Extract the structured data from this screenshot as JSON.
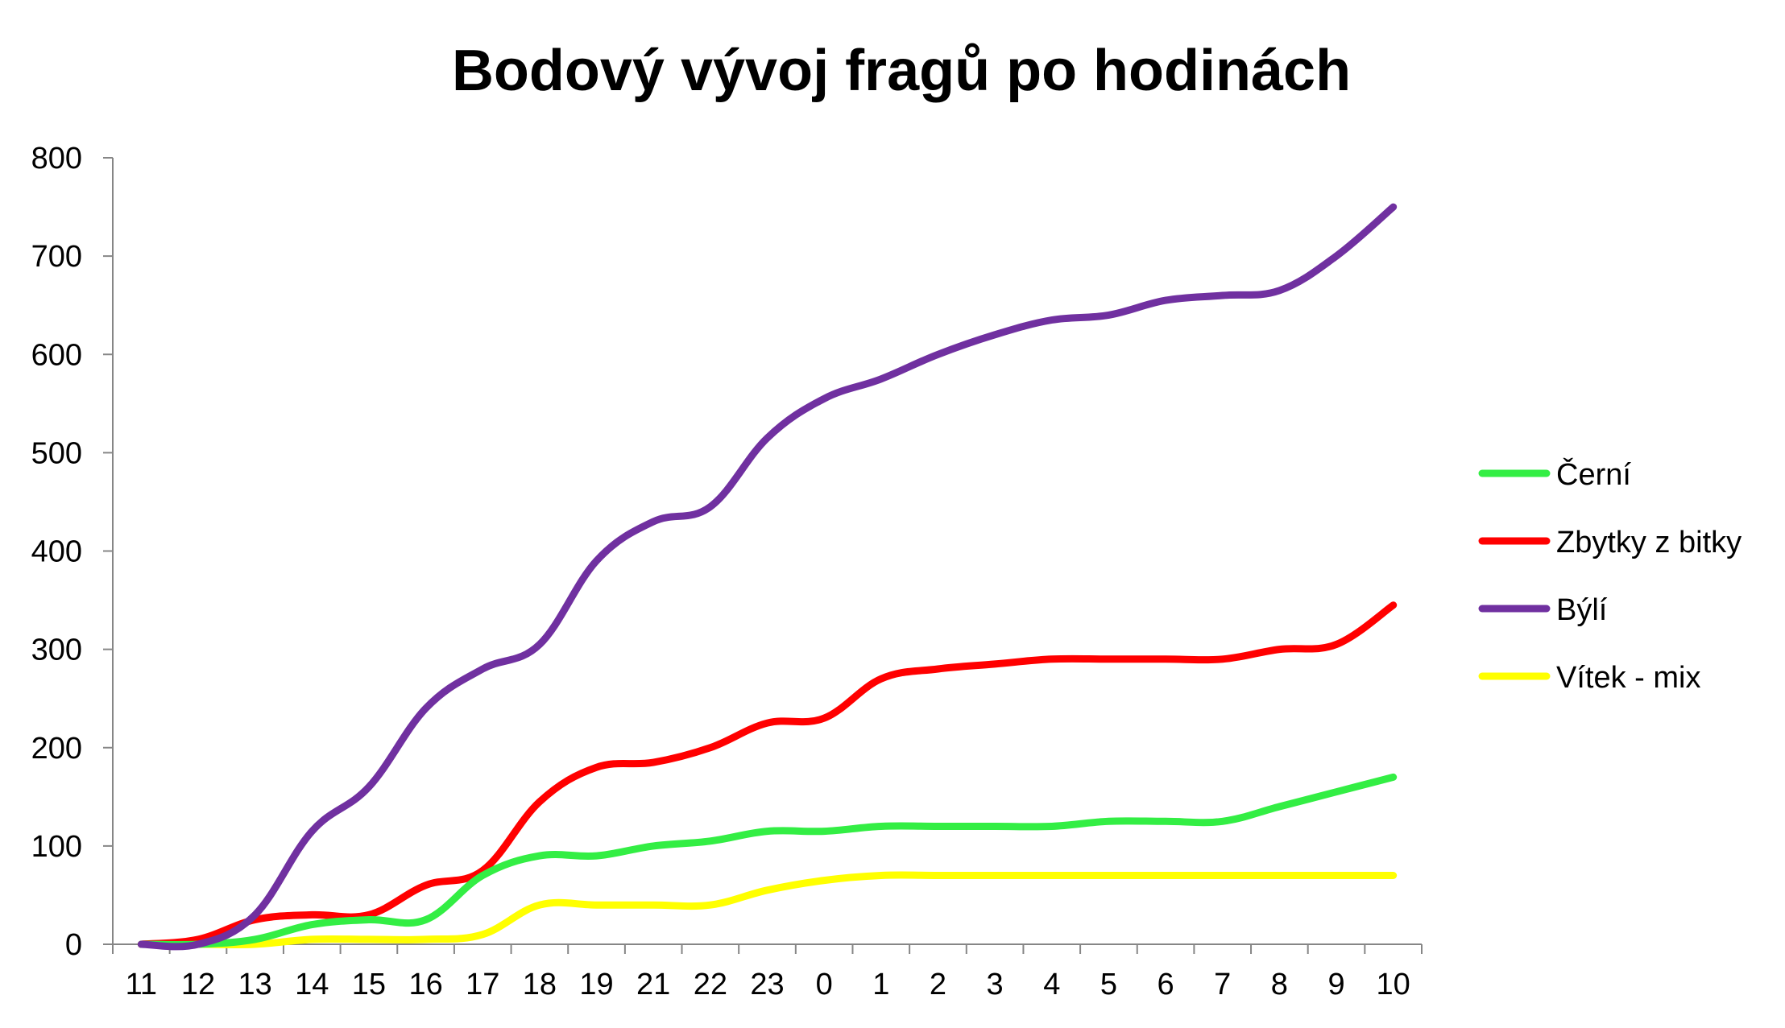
{
  "chart_data": {
    "type": "line",
    "title": "Bodový vývoj fragů po hodinách",
    "xlabel": "",
    "ylabel": "",
    "ylim": [
      0,
      800
    ],
    "yticks": [
      0,
      100,
      200,
      300,
      400,
      500,
      600,
      700,
      800
    ],
    "grid": false,
    "legend_position": "right",
    "smooth": true,
    "categories": [
      "11",
      "12",
      "13",
      "14",
      "15",
      "16",
      "17",
      "18",
      "19",
      "21",
      "22",
      "23",
      "0",
      "1",
      "2",
      "3",
      "4",
      "5",
      "6",
      "7",
      "8",
      "9",
      "10"
    ],
    "series": [
      {
        "name": "Černí",
        "color": "#33ee44",
        "values": [
          0,
          0,
          5,
          20,
          25,
          25,
          70,
          90,
          90,
          100,
          105,
          115,
          115,
          120,
          120,
          120,
          120,
          125,
          125,
          125,
          140,
          155,
          170
        ]
      },
      {
        "name": "Zbytky z bitky",
        "color": "#ff0000",
        "values": [
          0,
          5,
          25,
          30,
          30,
          60,
          75,
          145,
          180,
          185,
          200,
          225,
          230,
          270,
          280,
          285,
          290,
          290,
          290,
          290,
          300,
          305,
          345
        ]
      },
      {
        "name": "Býlí",
        "color": "#7030a0",
        "values": [
          0,
          0,
          30,
          115,
          160,
          240,
          280,
          305,
          390,
          430,
          445,
          515,
          555,
          575,
          600,
          620,
          635,
          640,
          655,
          660,
          665,
          700,
          750
        ]
      },
      {
        "name": "Vítek - mix",
        "color": "#ffff00",
        "values": [
          0,
          0,
          0,
          5,
          5,
          5,
          10,
          40,
          40,
          40,
          40,
          55,
          65,
          70,
          70,
          70,
          70,
          70,
          70,
          70,
          70,
          70,
          70
        ]
      }
    ]
  }
}
